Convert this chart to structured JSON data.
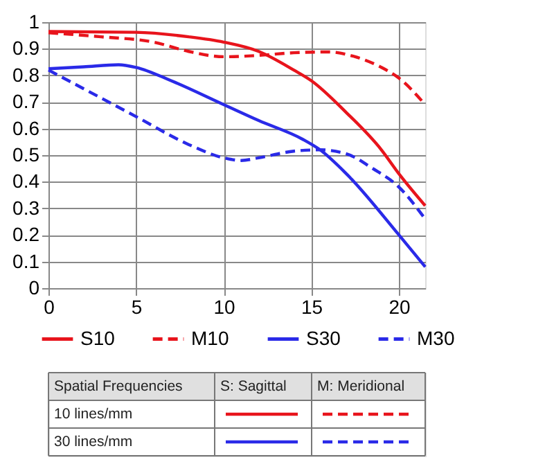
{
  "chart_data": {
    "type": "line",
    "xlim": [
      0,
      21.5
    ],
    "xticks": [
      0,
      5,
      10,
      15,
      20
    ],
    "ylim": [
      0,
      1
    ],
    "yticks": [
      0,
      0.1,
      0.2,
      0.3,
      0.4,
      0.5,
      0.6,
      0.7,
      0.8,
      0.9,
      1
    ],
    "grid": true,
    "legend": "bottom",
    "marker": "none",
    "annotations": [
      "Spatial Frequencies",
      "S: Sagittal",
      "M: Meridional",
      "10 lines/mm",
      "30 lines/mm"
    ],
    "series": [
      {
        "name": "S10",
        "color": "#e8141c",
        "line_style": "solid",
        "x": [
          0,
          5,
          8,
          10,
          12,
          14,
          15,
          17,
          19,
          20,
          21.5
        ],
        "values": [
          0.965,
          0.962,
          0.945,
          0.925,
          0.89,
          0.82,
          0.78,
          0.66,
          0.52,
          0.43,
          0.31
        ]
      },
      {
        "name": "M10",
        "color": "#e8141c",
        "line_style": "dashed",
        "x": [
          0,
          3,
          6,
          8,
          10,
          12,
          14,
          16,
          17.5,
          19,
          20,
          21.5
        ],
        "values": [
          0.96,
          0.945,
          0.925,
          0.89,
          0.87,
          0.875,
          0.885,
          0.888,
          0.87,
          0.83,
          0.79,
          0.69
        ]
      },
      {
        "name": "S30",
        "color": "#2a2ae8",
        "line_style": "solid",
        "x": [
          0,
          2,
          4,
          5,
          7,
          10,
          12,
          14.5,
          15.5,
          17,
          20,
          21.5
        ],
        "values": [
          0.825,
          0.832,
          0.84,
          0.83,
          0.78,
          0.69,
          0.63,
          0.56,
          0.52,
          0.43,
          0.2,
          0.08
        ]
      },
      {
        "name": "M30",
        "color": "#2a2ae8",
        "line_style": "dashed",
        "x": [
          0,
          2,
          5,
          8,
          10,
          11,
          12,
          14,
          15.5,
          17,
          18.5,
          20,
          21.5
        ],
        "values": [
          0.82,
          0.75,
          0.645,
          0.54,
          0.49,
          0.48,
          0.49,
          0.515,
          0.52,
          0.505,
          0.45,
          0.38,
          0.26
        ]
      }
    ]
  }
}
